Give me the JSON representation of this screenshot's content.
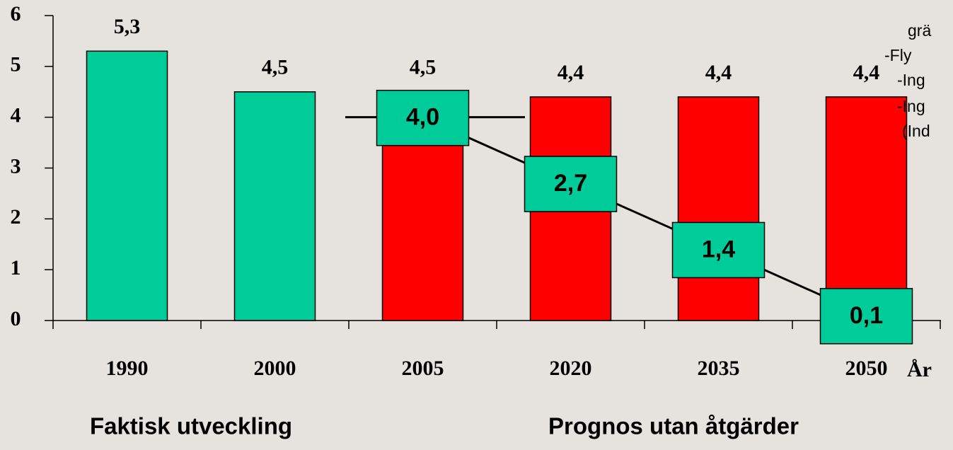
{
  "chart_data": {
    "type": "bar",
    "categories": [
      "1990",
      "2000",
      "2005",
      "2020",
      "2035",
      "2050"
    ],
    "values": [
      5.3,
      4.5,
      4.5,
      4.4,
      4.4,
      4.4
    ],
    "value_labels": [
      "5,3",
      "4,5",
      "4,5",
      "4,4",
      "4,4",
      "4,4"
    ],
    "colors": [
      "#00cc99",
      "#00cc99",
      "#ff0000",
      "#ff0000",
      "#ff0000",
      "#ff0000"
    ],
    "target": {
      "values": [
        null,
        null,
        4.0,
        2.7,
        1.4,
        0.1
      ],
      "value_labels": [
        null,
        null,
        "4,0",
        "2,7",
        "1,4",
        "0,1"
      ],
      "color": "#000000",
      "box_color": "#00cc99"
    },
    "ylim": [
      0,
      6
    ],
    "yticks": [
      0,
      1,
      2,
      3,
      4,
      5,
      6
    ],
    "x_label": "År",
    "group_labels": [
      "Faktisk utveckling",
      "Prognos utan åtgärder"
    ],
    "side_notes": [
      "grä",
      "-Fly",
      "-Ing",
      "-Ing",
      "(Ind"
    ]
  }
}
